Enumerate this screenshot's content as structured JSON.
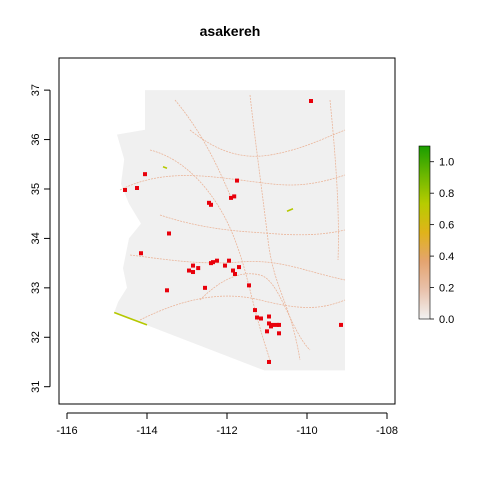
{
  "chart_data": {
    "type": "map",
    "title": "asakereh",
    "xlabel": "",
    "ylabel": "",
    "xlim": [
      -116.2,
      -107.8
    ],
    "ylim": [
      30.65,
      37.65
    ],
    "x_ticks": [
      -116,
      -114,
      -112,
      -110,
      -108
    ],
    "y_ticks": [
      31,
      32,
      33,
      34,
      35,
      36,
      37
    ],
    "x_tick_labels": [
      "-116",
      "-114",
      "-112",
      "-110",
      "-108"
    ],
    "y_tick_labels": [
      "31",
      "32",
      "33",
      "34",
      "35",
      "36",
      "37"
    ],
    "region": "Arizona",
    "region_fill": "#f0f0f0",
    "legend": {
      "placement": "right",
      "min": 0.0,
      "max": 1.1,
      "ticks": [
        0.0,
        0.2,
        0.4,
        0.6,
        0.8,
        1.0
      ],
      "tick_labels": [
        "0.0",
        "0.2",
        "0.4",
        "0.6",
        "0.8",
        "1.0"
      ],
      "colors": [
        "#f2f2f2",
        "#e9c2ac",
        "#e4a470",
        "#e0b31a",
        "#b7cc00",
        "#6bb700",
        "#1a9e00"
      ]
    },
    "points": {
      "color": "#e8000b",
      "values": [
        [
          -109.9,
          36.78
        ],
        [
          -114.55,
          34.98
        ],
        [
          -114.25,
          35.02
        ],
        [
          -114.05,
          35.3
        ],
        [
          -113.45,
          34.1
        ],
        [
          -112.45,
          34.72
        ],
        [
          -112.4,
          34.68
        ],
        [
          -111.75,
          35.17
        ],
        [
          -111.82,
          34.85
        ],
        [
          -111.9,
          34.82
        ],
        [
          -114.15,
          33.7
        ],
        [
          -113.5,
          32.95
        ],
        [
          -112.85,
          33.45
        ],
        [
          -112.95,
          33.35
        ],
        [
          -112.72,
          33.4
        ],
        [
          -112.85,
          33.32
        ],
        [
          -112.4,
          33.5
        ],
        [
          -112.35,
          33.52
        ],
        [
          -112.25,
          33.55
        ],
        [
          -112.05,
          33.45
        ],
        [
          -111.95,
          33.55
        ],
        [
          -111.85,
          33.35
        ],
        [
          -111.8,
          33.28
        ],
        [
          -111.7,
          33.42
        ],
        [
          -111.45,
          33.05
        ],
        [
          -112.55,
          33.0
        ],
        [
          -111.3,
          32.55
        ],
        [
          -111.25,
          32.4
        ],
        [
          -111.15,
          32.38
        ],
        [
          -110.95,
          32.42
        ],
        [
          -110.95,
          32.28
        ],
        [
          -110.9,
          32.22
        ],
        [
          -110.85,
          32.25
        ],
        [
          -110.75,
          32.25
        ],
        [
          -110.7,
          32.25
        ],
        [
          -111.0,
          32.12
        ],
        [
          -110.7,
          32.08
        ],
        [
          -109.15,
          32.25
        ],
        [
          -110.95,
          31.5
        ]
      ]
    },
    "high_value_segments": {
      "color": "#b5c800",
      "segments": [
        [
          [
            -114.82,
            32.5
          ],
          [
            -114.0,
            32.25
          ]
        ],
        [
          [
            -110.5,
            34.55
          ],
          [
            -110.35,
            34.6
          ]
        ],
        [
          [
            -113.6,
            35.45
          ],
          [
            -113.5,
            35.42
          ]
        ]
      ]
    }
  }
}
